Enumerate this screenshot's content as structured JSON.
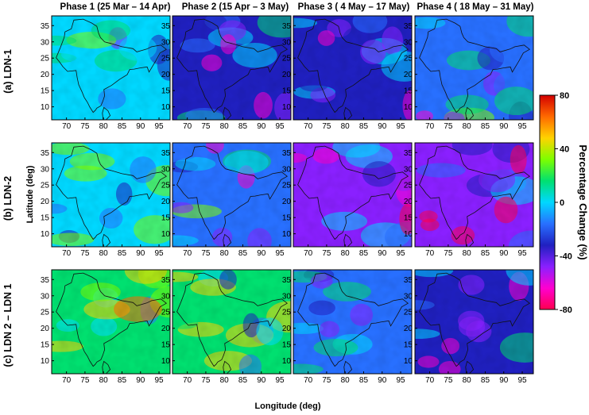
{
  "chart_data": {
    "type": "heatmap",
    "columns": [
      "Phase 1 (25 Mar – 14 Apr)",
      "Phase 2 (15 Apr – 3 May)",
      "Phase 3 ( 4 May – 17 May)",
      "Phase 4 ( 18 May – 31 May)"
    ],
    "rows": [
      "(a) LDN-1",
      "(b) LDN-2",
      "(c) LDN 2 – LDN 1"
    ],
    "xlabel": "Longitude (deg)",
    "ylabel": "Latitude (deg)",
    "x_ticks": [
      70,
      75,
      80,
      85,
      90,
      95
    ],
    "y_ticks": [
      10,
      15,
      20,
      25,
      30,
      35
    ],
    "xlim": [
      66,
      98
    ],
    "ylim": [
      6,
      38
    ],
    "colorbar": {
      "label": "Percentage Change (%)",
      "ticks": [
        80,
        40,
        0,
        -40,
        -80
      ],
      "range": [
        -80,
        80
      ],
      "colors": [
        "#d40000",
        "#ff6a00",
        "#ffd300",
        "#7dff00",
        "#00e070",
        "#00d8ff",
        "#2870ff",
        "#2020c0",
        "#8a20ff",
        "#ff00d0",
        "#ff0050"
      ]
    },
    "panel_mean_change": [
      [
        -5,
        -25,
        -25,
        -15
      ],
      [
        5,
        -20,
        -40,
        -50
      ],
      [
        20,
        15,
        -20,
        -30
      ]
    ]
  }
}
